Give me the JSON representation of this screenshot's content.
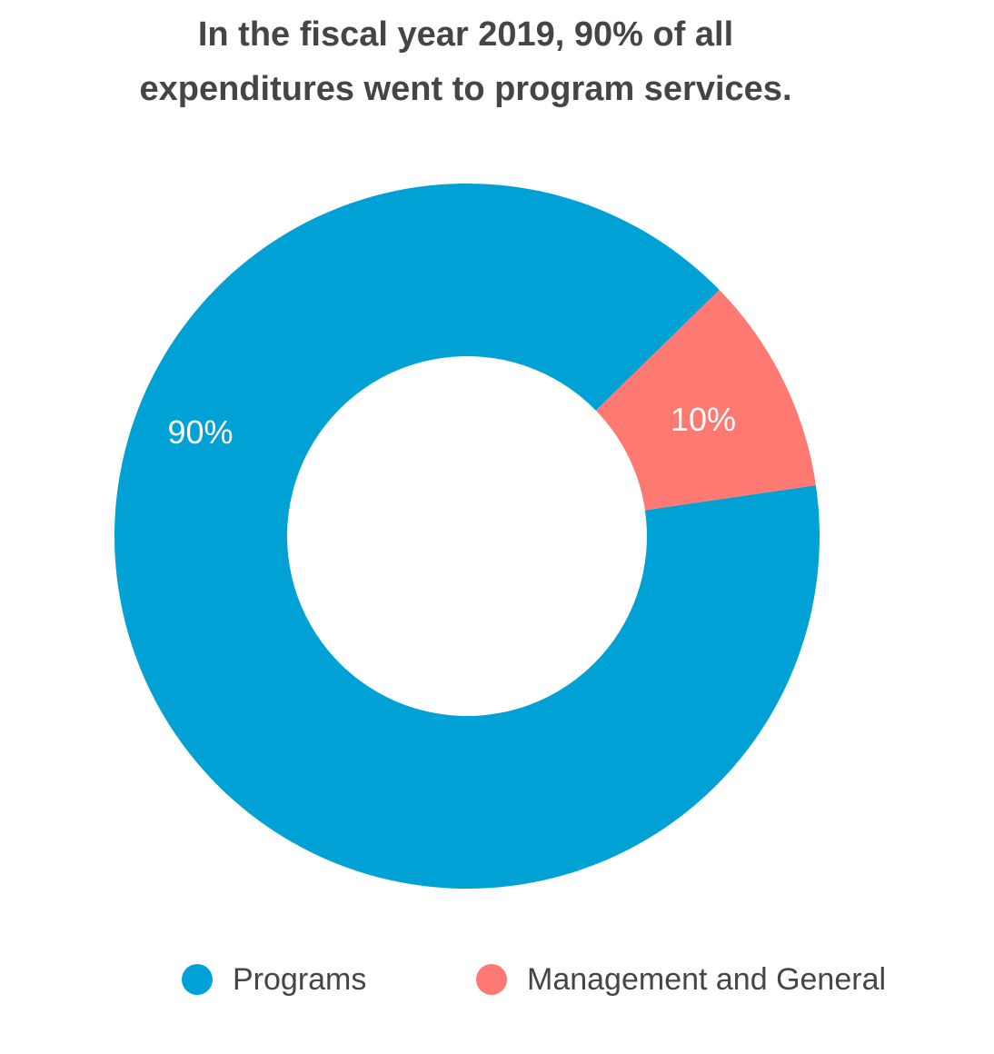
{
  "chart_data": {
    "type": "pie",
    "variant": "donut",
    "title": "In the fiscal year 2019, 90% of all expenditures went to program services.",
    "slices": [
      {
        "name": "Programs",
        "value": 90,
        "label": "90%",
        "color": "#00a2d6"
      },
      {
        "name": "Management and General",
        "value": 10,
        "label": "10%",
        "color": "#fd7971"
      }
    ],
    "legend_position": "bottom"
  }
}
